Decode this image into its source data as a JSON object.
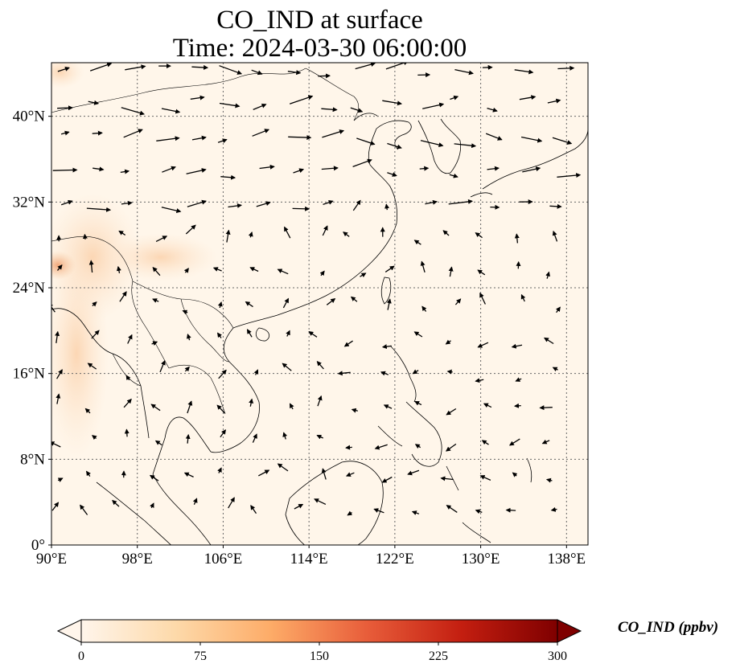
{
  "title": {
    "line1": "CO_IND at surface",
    "line2": "Time: 2024-03-30 06:00:00"
  },
  "map": {
    "extent": {
      "lon_min": 90,
      "lon_max": 140,
      "lat_min": 0,
      "lat_max": 45
    },
    "gridlines": true,
    "lon_ticks": [
      {
        "value": 90,
        "label": "90°E"
      },
      {
        "value": 98,
        "label": "98°E"
      },
      {
        "value": 106,
        "label": "106°E"
      },
      {
        "value": 114,
        "label": "114°E"
      },
      {
        "value": 122,
        "label": "122°E"
      },
      {
        "value": 130,
        "label": "130°E"
      },
      {
        "value": 138,
        "label": "138°E"
      }
    ],
    "lat_ticks": [
      {
        "value": 0,
        "label": "0°"
      },
      {
        "value": 8,
        "label": "8°N"
      },
      {
        "value": 16,
        "label": "16°N"
      },
      {
        "value": 24,
        "label": "24°N"
      },
      {
        "value": 32,
        "label": "32°N"
      },
      {
        "value": 40,
        "label": "40°N"
      }
    ],
    "background_color": "#fff6ea",
    "high_concentration_color": "#f0a070",
    "features": [
      "coastlines",
      "country-borders",
      "wind-vectors"
    ]
  },
  "colorbar": {
    "label": "CO_IND (ppbv)",
    "min": 0,
    "max": 300,
    "extend": "both",
    "ticks": [
      {
        "value": 0,
        "label": "0"
      },
      {
        "value": 75,
        "label": "75"
      },
      {
        "value": 150,
        "label": "150"
      },
      {
        "value": 225,
        "label": "225"
      },
      {
        "value": 300,
        "label": "300"
      }
    ],
    "colors": [
      "#fff5eb",
      "#fdd9a9",
      "#fdab67",
      "#e85d3a",
      "#c31e10",
      "#7f0000"
    ]
  }
}
